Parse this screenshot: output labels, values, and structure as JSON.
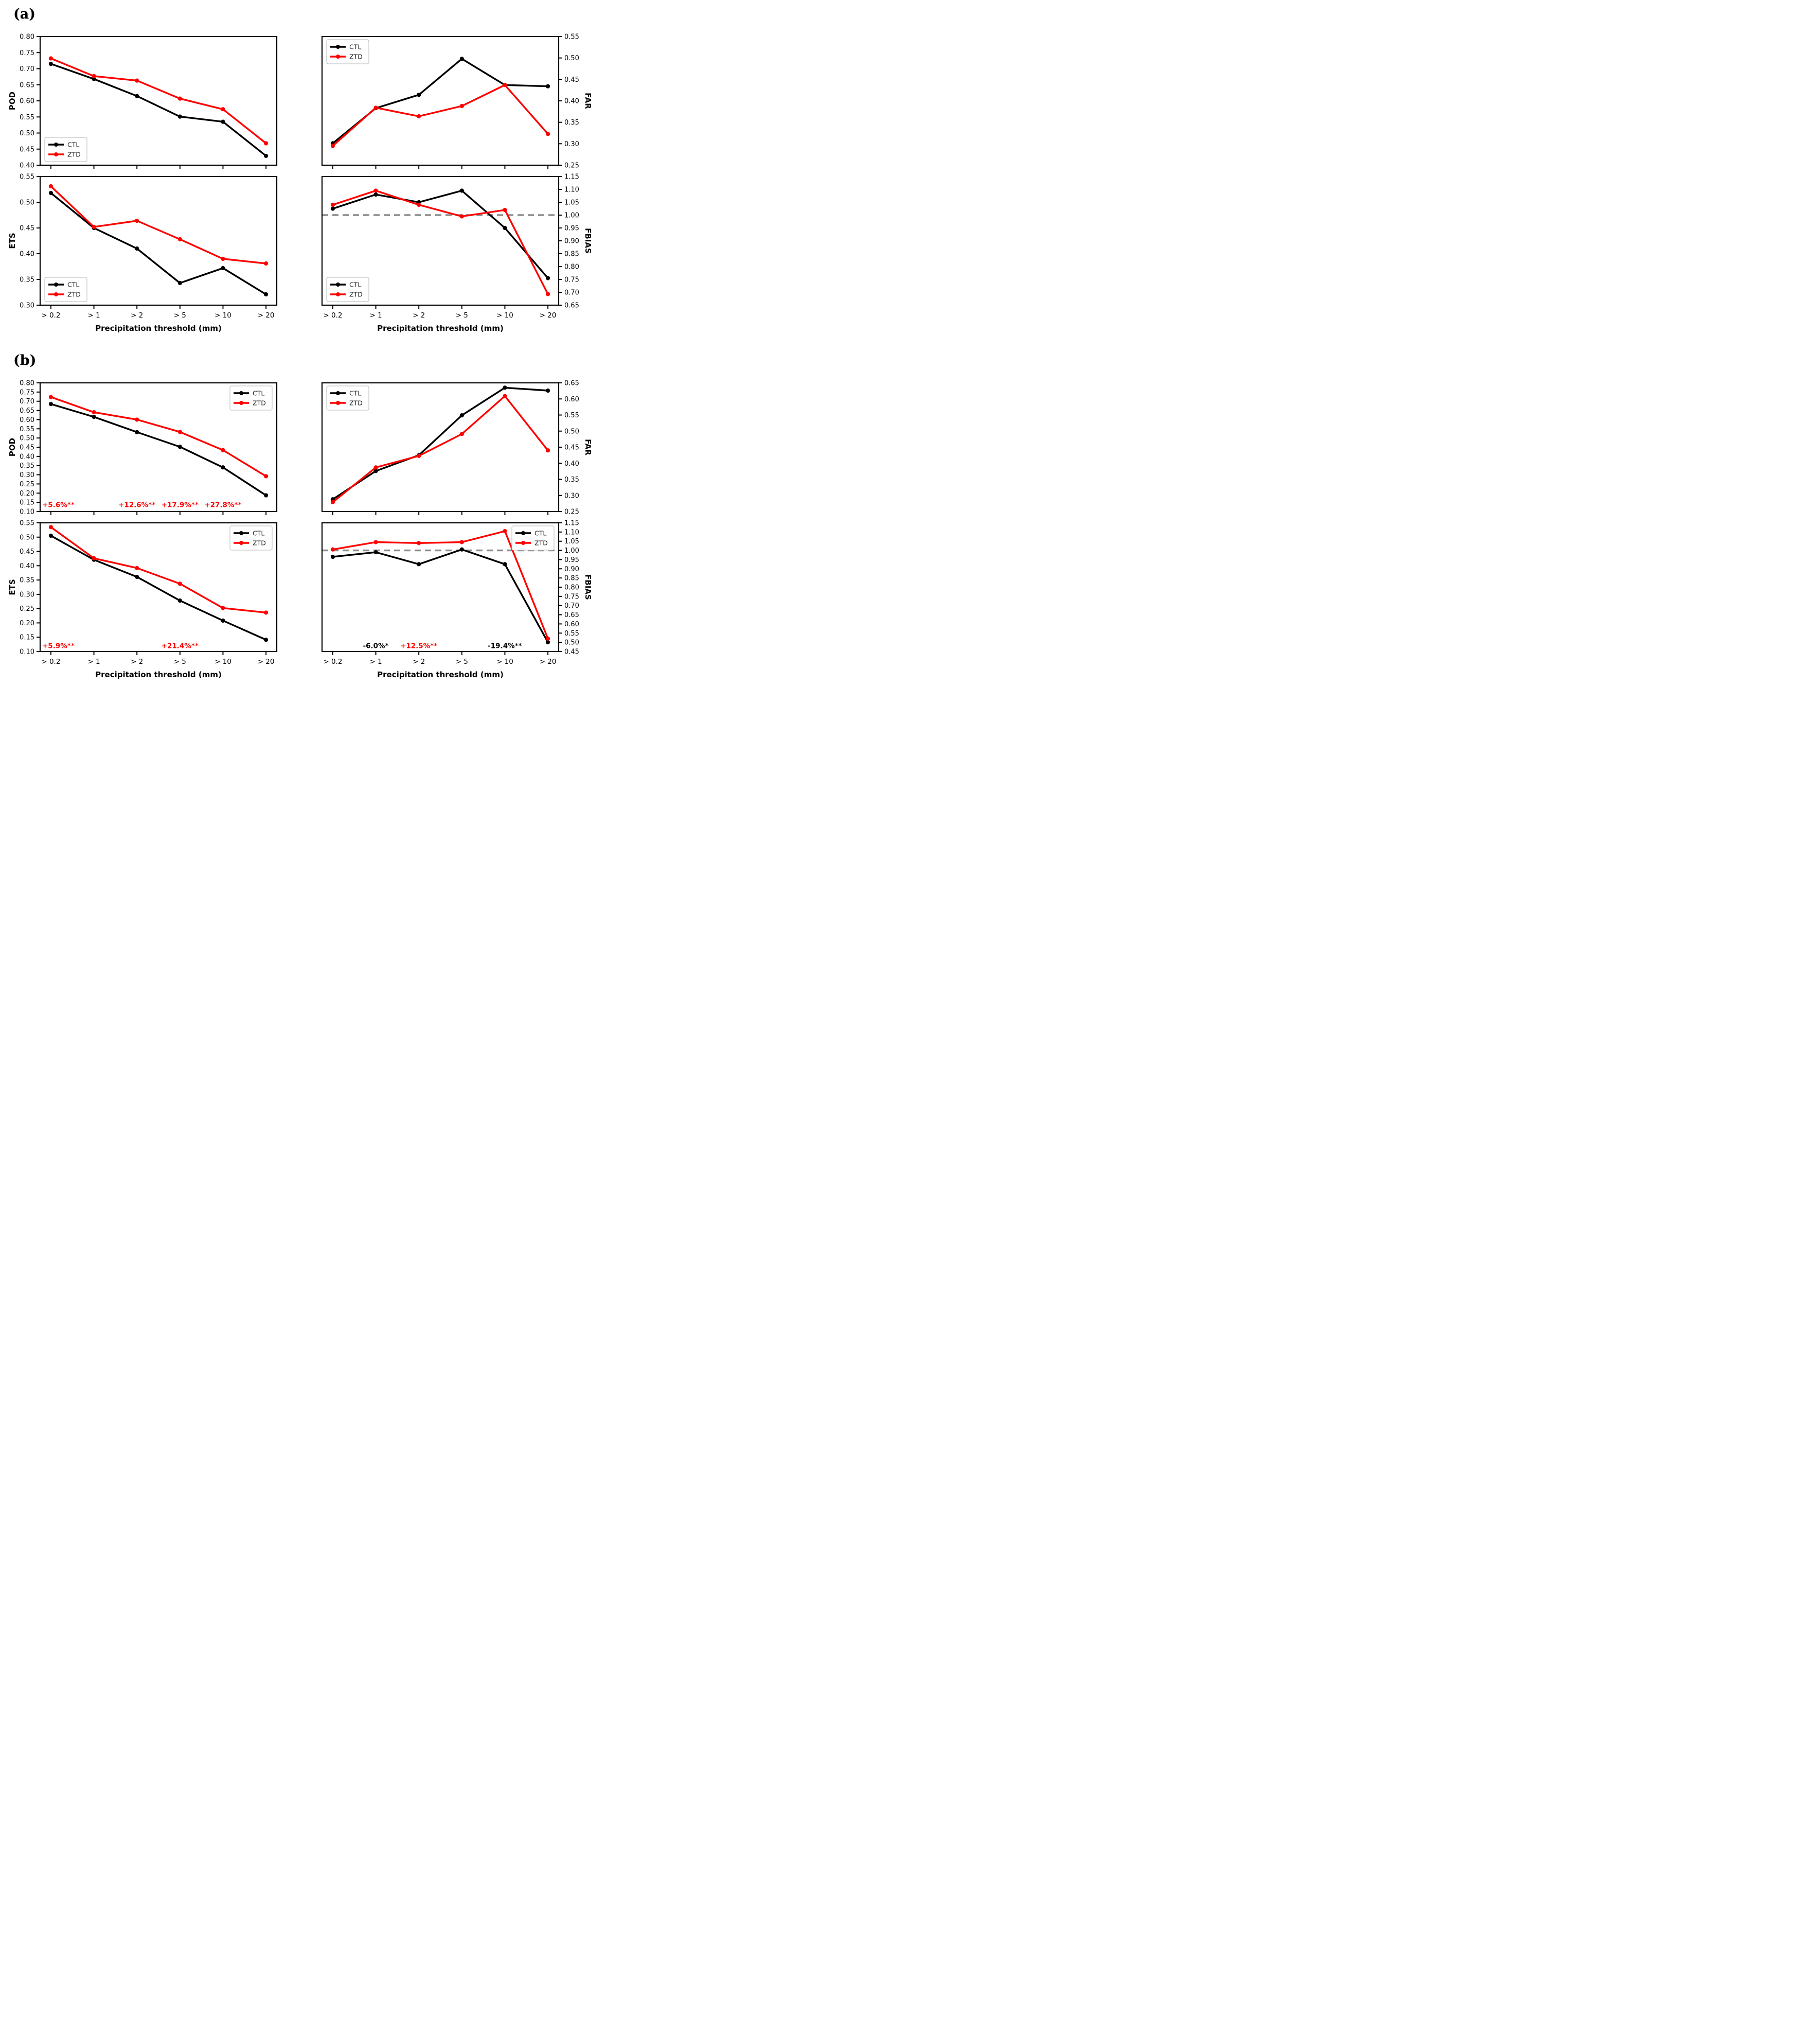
{
  "panels": [
    {
      "label": "(a)"
    },
    {
      "label": "(b)"
    }
  ],
  "categories": [
    "> 0.2",
    "> 1",
    "> 2",
    "> 5",
    "> 10",
    "> 20"
  ],
  "xlabel": "Precipitation threshold (mm)",
  "legend_entries": [
    "CTL",
    "ZTD"
  ],
  "colors": {
    "ctl": "#000000",
    "ztd": "#ff0000",
    "reference_line": "#8c8c8c",
    "annotation_red": "#ff0000",
    "annotation_black": "#000000"
  },
  "chart_data": [
    {
      "id": "a-pod",
      "panel": "(a)",
      "type": "line",
      "categories": [
        "> 0.2",
        "> 1",
        "> 2",
        "> 5",
        "> 10",
        "> 20"
      ],
      "ylabel": "POD",
      "y_side": "left",
      "ylim": [
        0.4,
        0.8
      ],
      "ytick_step": 0.05,
      "xlabel": "",
      "x_ticklabels_visible": false,
      "legend_position": "lower-left",
      "series": [
        {
          "name": "CTL",
          "color": "#000000",
          "values": [
            0.715,
            0.668,
            0.615,
            0.551,
            0.535,
            0.429
          ]
        },
        {
          "name": "ZTD",
          "color": "#ff0000",
          "values": [
            0.732,
            0.677,
            0.663,
            0.607,
            0.574,
            0.468
          ]
        }
      ],
      "annotations": []
    },
    {
      "id": "a-far",
      "panel": "(a)",
      "type": "line",
      "categories": [
        "> 0.2",
        "> 1",
        "> 2",
        "> 5",
        "> 10",
        "> 20"
      ],
      "ylabel": "FAR",
      "y_side": "right",
      "ylim": [
        0.25,
        0.55
      ],
      "ytick_step": 0.05,
      "xlabel": "",
      "x_ticklabels_visible": false,
      "legend_position": "upper-left",
      "series": [
        {
          "name": "CTL",
          "color": "#000000",
          "values": [
            0.301,
            0.383,
            0.414,
            0.498,
            0.437,
            0.434
          ]
        },
        {
          "name": "ZTD",
          "color": "#ff0000",
          "values": [
            0.295,
            0.384,
            0.364,
            0.388,
            0.437,
            0.323
          ]
        }
      ],
      "annotations": []
    },
    {
      "id": "a-ets",
      "panel": "(a)",
      "type": "line",
      "categories": [
        "> 0.2",
        "> 1",
        "> 2",
        "> 5",
        "> 10",
        "> 20"
      ],
      "ylabel": "ETS",
      "y_side": "left",
      "ylim": [
        0.3,
        0.55
      ],
      "ytick_step": 0.05,
      "xlabel": "Precipitation threshold (mm)",
      "x_ticklabels_visible": true,
      "legend_position": "lower-left",
      "series": [
        {
          "name": "CTL",
          "color": "#000000",
          "values": [
            0.518,
            0.45,
            0.41,
            0.343,
            0.372,
            0.321
          ]
        },
        {
          "name": "ZTD",
          "color": "#ff0000",
          "values": [
            0.531,
            0.452,
            0.464,
            0.428,
            0.39,
            0.381
          ]
        }
      ],
      "annotations": []
    },
    {
      "id": "a-fbias",
      "panel": "(a)",
      "type": "line",
      "categories": [
        "> 0.2",
        "> 1",
        "> 2",
        "> 5",
        "> 10",
        "> 20"
      ],
      "ylabel": "FBIAS",
      "y_side": "right",
      "ylim": [
        0.65,
        1.15
      ],
      "ytick_step": 0.05,
      "xlabel": "Precipitation threshold (mm)",
      "x_ticklabels_visible": true,
      "legend_position": "lower-left",
      "reference_line": 1.0,
      "series": [
        {
          "name": "CTL",
          "color": "#000000",
          "values": [
            1.025,
            1.08,
            1.05,
            1.095,
            0.95,
            0.755
          ]
        },
        {
          "name": "ZTD",
          "color": "#ff0000",
          "values": [
            1.04,
            1.095,
            1.04,
            0.995,
            1.02,
            0.693
          ]
        }
      ],
      "annotations": []
    },
    {
      "id": "b-pod",
      "panel": "(b)",
      "type": "line",
      "categories": [
        "> 0.2",
        "> 1",
        "> 2",
        "> 5",
        "> 10",
        "> 20"
      ],
      "ylabel": "POD",
      "y_side": "left",
      "ylim": [
        0.1,
        0.8
      ],
      "ytick_step": 0.05,
      "xlabel": "",
      "x_ticklabels_visible": false,
      "legend_position": "upper-right",
      "series": [
        {
          "name": "CTL",
          "color": "#000000",
          "values": [
            0.685,
            0.615,
            0.532,
            0.452,
            0.34,
            0.188
          ]
        },
        {
          "name": "ZTD",
          "color": "#ff0000",
          "values": [
            0.723,
            0.64,
            0.6,
            0.533,
            0.434,
            0.292
          ]
        }
      ],
      "annotations": [
        {
          "category_index": 0,
          "text": "+5.6%**",
          "color": "#ff0000",
          "y": 0.124,
          "anchor": "start"
        },
        {
          "category_index": 2,
          "text": "+12.6%**",
          "color": "#ff0000",
          "y": 0.124
        },
        {
          "category_index": 3,
          "text": "+17.9%**",
          "color": "#ff0000",
          "y": 0.124
        },
        {
          "category_index": 4,
          "text": "+27.8%**",
          "color": "#ff0000",
          "y": 0.124
        }
      ]
    },
    {
      "id": "b-far",
      "panel": "(b)",
      "type": "line",
      "categories": [
        "> 0.2",
        "> 1",
        "> 2",
        "> 5",
        "> 10",
        "> 20"
      ],
      "ylabel": "FAR",
      "y_side": "right",
      "ylim": [
        0.25,
        0.65
      ],
      "ytick_step": 0.05,
      "xlabel": "",
      "x_ticklabels_visible": false,
      "legend_position": "upper-left",
      "series": [
        {
          "name": "CTL",
          "color": "#000000",
          "values": [
            0.288,
            0.376,
            0.425,
            0.549,
            0.635,
            0.626
          ]
        },
        {
          "name": "ZTD",
          "color": "#ff0000",
          "values": [
            0.279,
            0.387,
            0.423,
            0.491,
            0.609,
            0.44
          ]
        }
      ],
      "annotations": []
    },
    {
      "id": "b-ets",
      "panel": "(b)",
      "type": "line",
      "categories": [
        "> 0.2",
        "> 1",
        "> 2",
        "> 5",
        "> 10",
        "> 20"
      ],
      "ylabel": "ETS",
      "y_side": "left",
      "ylim": [
        0.1,
        0.55
      ],
      "ytick_step": 0.05,
      "xlabel": "Precipitation threshold (mm)",
      "x_ticklabels_visible": true,
      "legend_position": "upper-right",
      "series": [
        {
          "name": "CTL",
          "color": "#000000",
          "values": [
            0.505,
            0.421,
            0.361,
            0.278,
            0.208,
            0.141
          ]
        },
        {
          "name": "ZTD",
          "color": "#ff0000",
          "values": [
            0.535,
            0.426,
            0.392,
            0.337,
            0.252,
            0.236
          ]
        }
      ],
      "annotations": [
        {
          "category_index": 0,
          "text": "+5.9%**",
          "color": "#ff0000",
          "y": 0.112,
          "anchor": "start"
        },
        {
          "category_index": 3,
          "text": "+21.4%**",
          "color": "#ff0000",
          "y": 0.112
        }
      ]
    },
    {
      "id": "b-fbias",
      "panel": "(b)",
      "type": "line",
      "categories": [
        "> 0.2",
        "> 1",
        "> 2",
        "> 5",
        "> 10",
        "> 20"
      ],
      "ylabel": "FBIAS",
      "y_side": "right",
      "ylim": [
        0.45,
        1.15
      ],
      "ytick_step": 0.05,
      "xlabel": "Precipitation threshold (mm)",
      "x_ticklabels_visible": true,
      "legend_position": "upper-right",
      "reference_line": 1.0,
      "series": [
        {
          "name": "CTL",
          "color": "#000000",
          "values": [
            0.965,
            0.99,
            0.925,
            1.005,
            0.925,
            0.5
          ]
        },
        {
          "name": "ZTD",
          "color": "#ff0000",
          "values": [
            1.005,
            1.045,
            1.04,
            1.045,
            1.105,
            0.52
          ]
        }
      ],
      "annotations": [
        {
          "category_index": 1,
          "text": "-6.0%*",
          "color": "#000000",
          "y": 0.468
        },
        {
          "category_index": 2,
          "text": "+12.5%**",
          "color": "#ff0000",
          "y": 0.468
        },
        {
          "category_index": 4,
          "text": "-19.4%**",
          "color": "#000000",
          "y": 0.468
        }
      ]
    }
  ]
}
